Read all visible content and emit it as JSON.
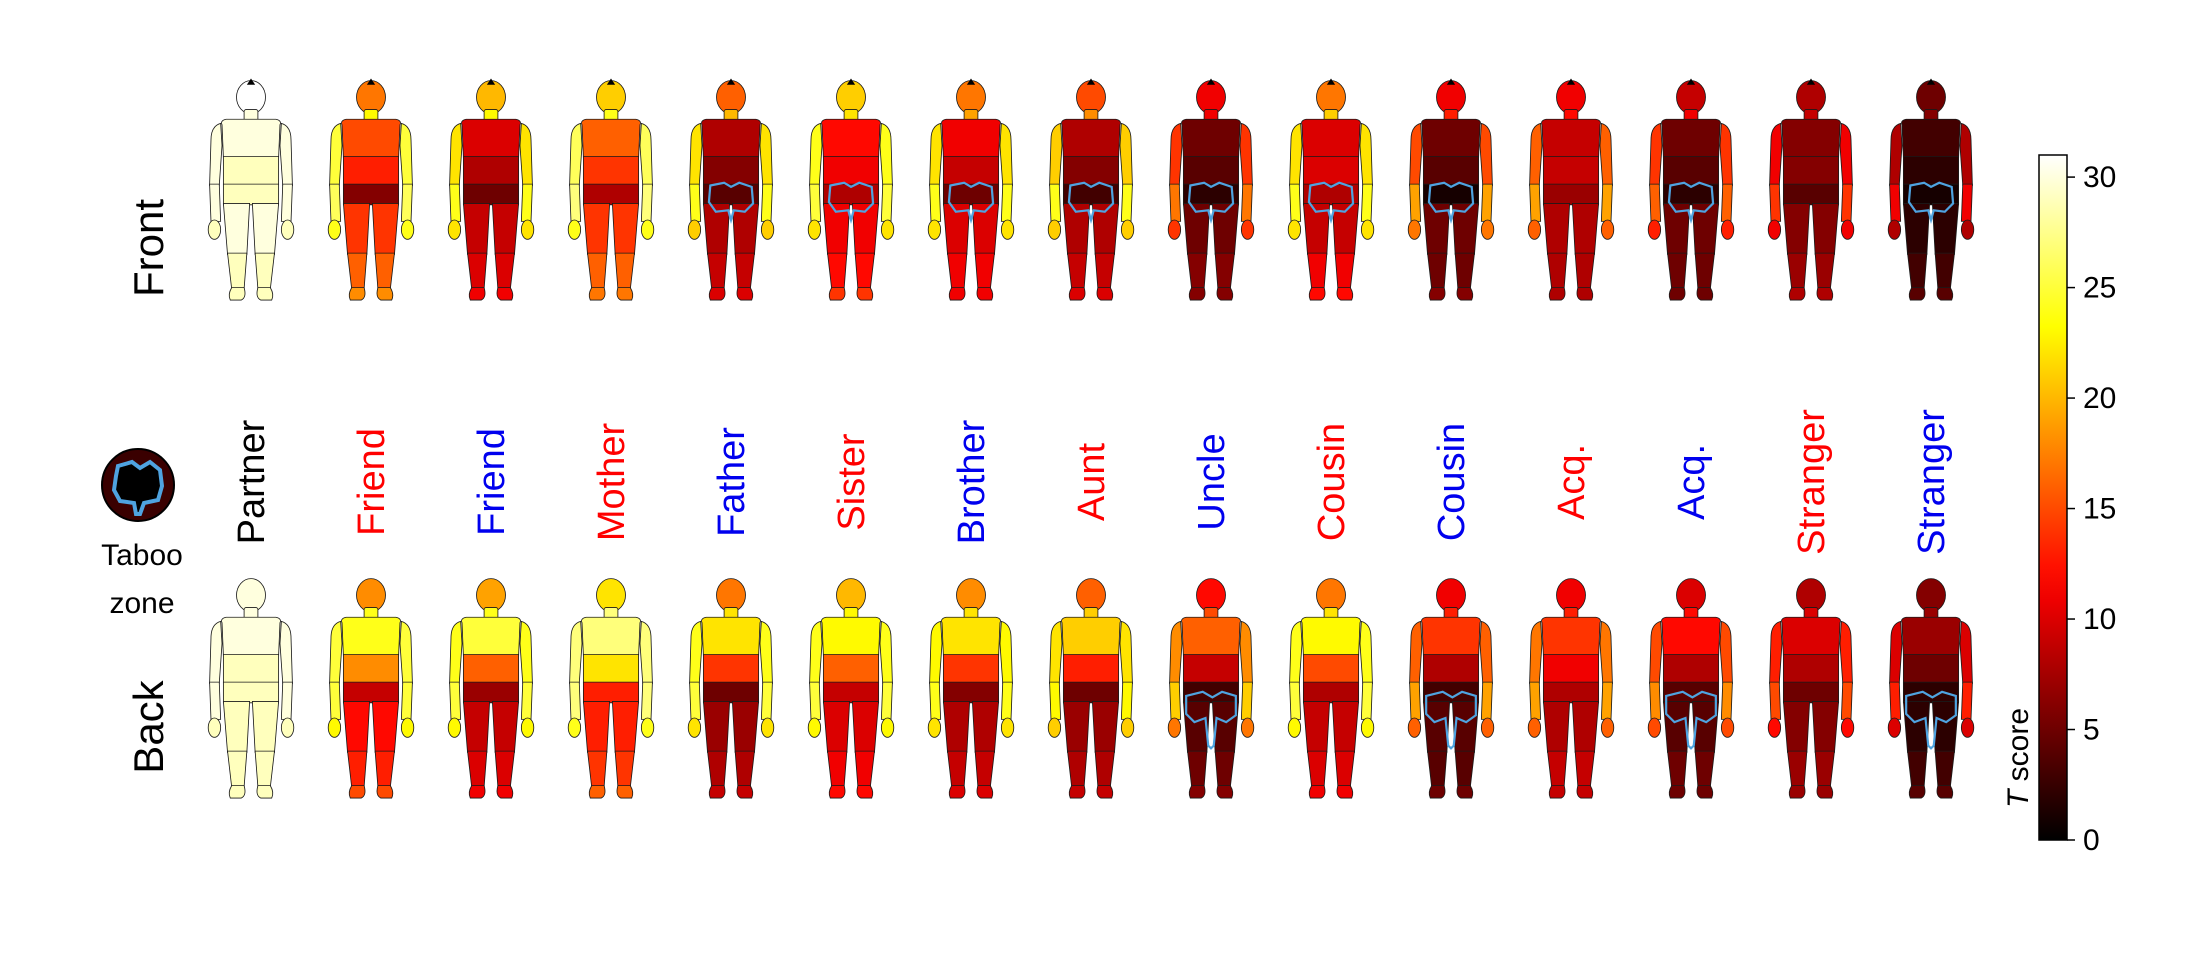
{
  "chart_data": {
    "type": "heatmap",
    "row_labels": [
      "Front",
      "Back"
    ],
    "categories": [
      {
        "label": "Partner",
        "sex": "none"
      },
      {
        "label": "Friend",
        "sex": "female"
      },
      {
        "label": "Friend",
        "sex": "male"
      },
      {
        "label": "Mother",
        "sex": "female"
      },
      {
        "label": "Father",
        "sex": "male"
      },
      {
        "label": "Sister",
        "sex": "female"
      },
      {
        "label": "Brother",
        "sex": "male"
      },
      {
        "label": "Aunt",
        "sex": "female"
      },
      {
        "label": "Uncle",
        "sex": "male"
      },
      {
        "label": "Cousin",
        "sex": "female"
      },
      {
        "label": "Cousin",
        "sex": "male"
      },
      {
        "label": "Acq.",
        "sex": "female"
      },
      {
        "label": "Acq.",
        "sex": "male"
      },
      {
        "label": "Stranger",
        "sex": "female"
      },
      {
        "label": "Stranger",
        "sex": "male"
      }
    ],
    "region_names": [
      "head",
      "neck",
      "upper_torso",
      "lower_torso",
      "hips",
      "upper_arm",
      "forearm",
      "hand",
      "thigh",
      "shin",
      "foot"
    ],
    "front_values": [
      [
        31,
        30,
        30,
        29,
        29,
        30,
        30,
        29,
        30,
        29,
        29
      ],
      [
        17,
        23,
        15,
        13,
        6,
        25,
        26,
        24,
        14,
        16,
        18
      ],
      [
        20,
        23,
        10,
        8,
        5,
        22,
        24,
        22,
        9,
        10,
        11
      ],
      [
        21,
        24,
        16,
        14,
        8,
        26,
        27,
        24,
        14,
        16,
        17
      ],
      [
        16,
        20,
        8,
        6,
        4,
        22,
        24,
        21,
        8,
        9,
        10
      ],
      [
        21,
        22,
        12,
        11,
        8,
        24,
        25,
        22,
        11,
        12,
        14
      ],
      [
        17,
        19,
        11,
        9,
        5,
        22,
        24,
        22,
        10,
        11,
        11
      ],
      [
        15,
        18,
        8,
        6,
        3,
        21,
        24,
        21,
        8,
        9,
        10
      ],
      [
        11,
        11,
        5,
        4,
        2,
        14,
        17,
        14,
        5,
        6,
        6
      ],
      [
        17,
        21,
        10,
        10,
        8,
        22,
        24,
        22,
        9,
        11,
        12
      ],
      [
        11,
        13,
        5,
        4,
        1,
        15,
        19,
        17,
        5,
        5,
        6
      ],
      [
        11,
        12,
        9,
        9,
        7,
        16,
        19,
        16,
        8,
        8,
        8
      ],
      [
        9,
        11,
        5,
        4,
        2,
        14,
        16,
        13,
        5,
        5,
        5
      ],
      [
        8,
        9,
        6,
        6,
        4,
        11,
        14,
        11,
        6,
        7,
        8
      ],
      [
        5,
        6,
        3,
        2,
        1,
        8,
        11,
        8,
        2,
        3,
        4
      ]
    ],
    "back_values": [
      [
        30,
        30,
        30,
        29,
        29,
        30,
        30,
        29,
        29,
        29,
        29
      ],
      [
        18,
        24,
        24,
        18,
        9,
        25,
        25,
        23,
        12,
        13,
        15
      ],
      [
        19,
        24,
        25,
        16,
        7,
        24,
        25,
        23,
        9,
        10,
        11
      ],
      [
        22,
        27,
        27,
        22,
        13,
        27,
        27,
        24,
        13,
        14,
        16
      ],
      [
        17,
        22,
        22,
        14,
        5,
        24,
        25,
        22,
        7,
        8,
        9
      ],
      [
        20,
        23,
        23,
        16,
        9,
        24,
        25,
        23,
        10,
        11,
        12
      ],
      [
        18,
        22,
        22,
        14,
        6,
        23,
        24,
        22,
        8,
        9,
        10
      ],
      [
        16,
        21,
        21,
        13,
        5,
        22,
        23,
        21,
        7,
        8,
        9
      ],
      [
        12,
        15,
        16,
        9,
        3,
        18,
        21,
        17,
        4,
        5,
        6
      ],
      [
        17,
        22,
        23,
        15,
        8,
        24,
        25,
        23,
        9,
        10,
        11
      ],
      [
        11,
        13,
        14,
        8,
        3,
        16,
        19,
        16,
        4,
        4,
        5
      ],
      [
        11,
        13,
        14,
        11,
        8,
        17,
        19,
        16,
        8,
        9,
        9
      ],
      [
        10,
        12,
        12,
        8,
        4,
        15,
        18,
        15,
        4,
        5,
        5
      ],
      [
        8,
        10,
        10,
        8,
        5,
        13,
        15,
        12,
        6,
        7,
        7
      ],
      [
        6,
        7,
        7,
        5,
        2,
        10,
        13,
        10,
        2,
        3,
        4
      ]
    ],
    "taboo_zone_front": [
      false,
      false,
      false,
      false,
      true,
      true,
      true,
      true,
      true,
      true,
      true,
      false,
      true,
      false,
      true
    ],
    "taboo_zone_back": [
      false,
      false,
      false,
      false,
      false,
      false,
      false,
      false,
      true,
      false,
      true,
      false,
      true,
      false,
      true
    ],
    "colorbar": {
      "label_italic": "T",
      "label_rest": " score",
      "ticks": [
        0,
        5,
        10,
        15,
        20,
        25,
        30
      ],
      "vmin": 0,
      "vmax": 31,
      "colormap": "hot"
    },
    "legend": {
      "text_line1": "Taboo",
      "text_line2": "zone"
    },
    "colors": {
      "female_label": "#ff0000",
      "male_label": "#0000ee",
      "neutral_label": "#000000",
      "taboo_outline": "#4fa3e0"
    }
  }
}
